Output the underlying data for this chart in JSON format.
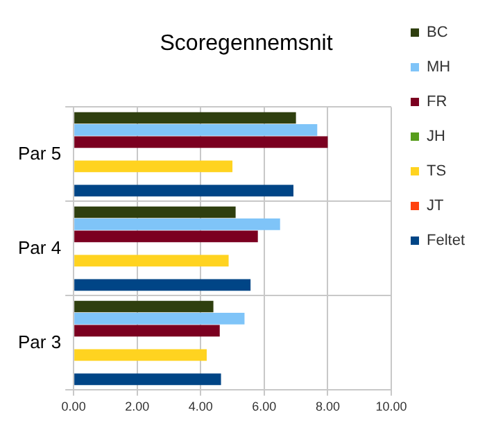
{
  "chart_data": {
    "type": "bar",
    "orientation": "horizontal",
    "title": "Scoregennemsnit",
    "categories": [
      "Par 5",
      "Par 4",
      "Par 3"
    ],
    "series": [
      {
        "name": "BC",
        "color": "#2f3f0f",
        "values": [
          7.0,
          5.1,
          4.4
        ]
      },
      {
        "name": "MH",
        "color": "#7fc4f8",
        "values": [
          7.67,
          6.5,
          5.38
        ]
      },
      {
        "name": "FR",
        "color": "#7b0020",
        "values": [
          8.0,
          5.8,
          4.6
        ]
      },
      {
        "name": "JH",
        "color": "#579d1c",
        "values": [
          null,
          null,
          null
        ]
      },
      {
        "name": "TS",
        "color": "#ffd320",
        "values": [
          5.0,
          4.88,
          4.19
        ]
      },
      {
        "name": "JT",
        "color": "#ff420e",
        "values": [
          null,
          null,
          null
        ]
      },
      {
        "name": "Feltet",
        "color": "#004586",
        "values": [
          6.92,
          5.57,
          4.64
        ]
      }
    ],
    "xlim": [
      0,
      10
    ],
    "xticks": [
      {
        "value": 0,
        "label": "0.00"
      },
      {
        "value": 2,
        "label": "2.00"
      },
      {
        "value": 4,
        "label": "4.00"
      },
      {
        "value": 6,
        "label": "6.00"
      },
      {
        "value": 8,
        "label": "8.00"
      },
      {
        "value": 10,
        "label": "10.00"
      }
    ],
    "grid": true,
    "legend": "right"
  }
}
